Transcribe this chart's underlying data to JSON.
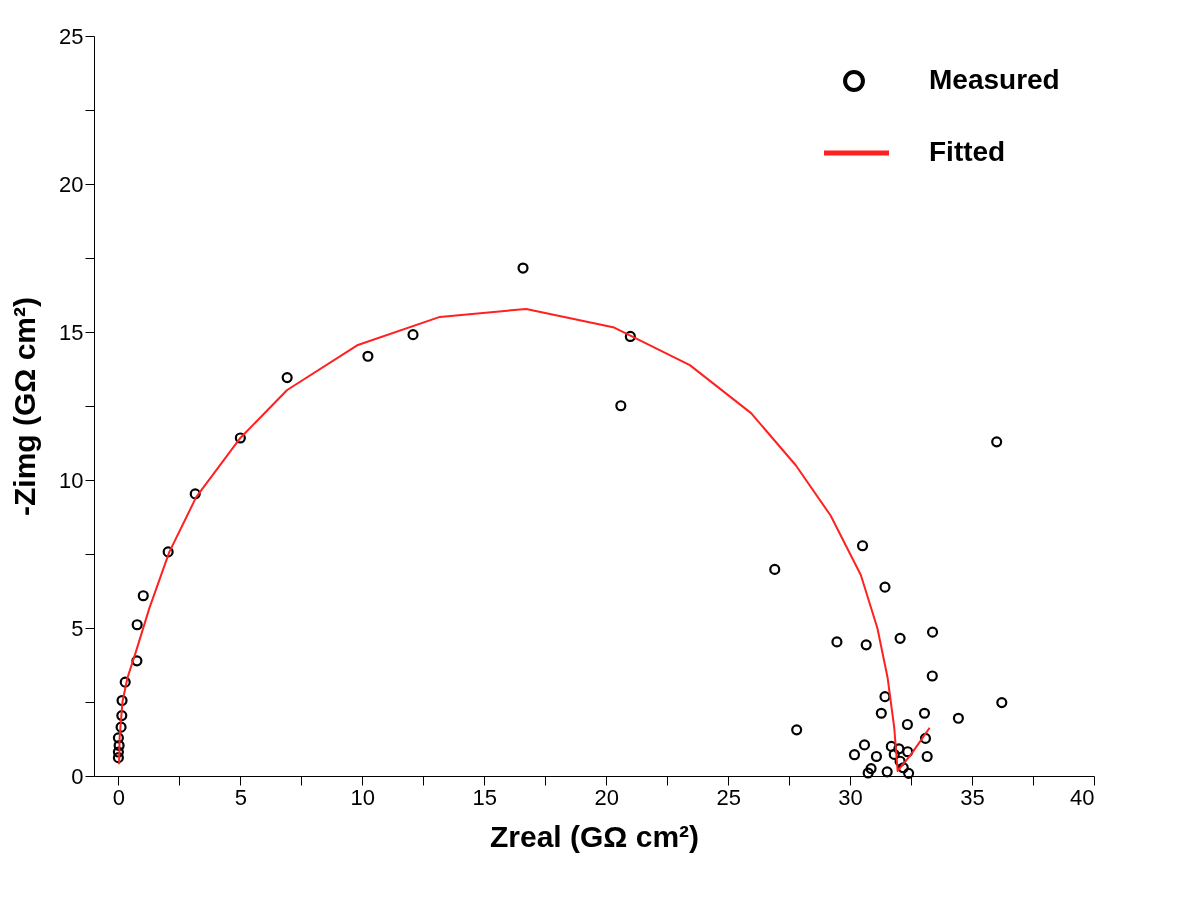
{
  "chart_data": {
    "type": "scatter",
    "xlabel": "Zreal (GΩ cm²)",
    "ylabel": "-Zimg (GΩ cm²)",
    "xlim": [
      -1,
      40
    ],
    "ylim": [
      0,
      25
    ],
    "xticks": [
      0,
      {
        "value": 2.5,
        "label": null
      },
      5,
      {
        "value": 7.5,
        "label": null
      },
      10,
      {
        "value": 12.5,
        "label": null
      },
      15,
      {
        "value": 17.5,
        "label": null
      },
      20,
      {
        "value": 22.5,
        "label": null
      },
      25,
      {
        "value": 27.5,
        "label": null
      },
      30,
      {
        "value": 32.5,
        "label": null
      },
      35,
      {
        "value": 37.5,
        "label": null
      },
      40
    ],
    "yticks": [
      0,
      {
        "value": 2.5,
        "label": null
      },
      5,
      {
        "value": 7.5,
        "label": null
      },
      10,
      {
        "value": 12.5,
        "label": null
      },
      15,
      {
        "value": 17.5,
        "label": null
      },
      20,
      {
        "value": 22.5,
        "label": null
      },
      25
    ],
    "grid": false,
    "legend": "top right",
    "series": [
      {
        "name": "Measured",
        "marker": "circle",
        "color": "#000000",
        "x": [
          0,
          0.03,
          0,
          0,
          0.11,
          0.14,
          0.15,
          0.28,
          0.76,
          0.77,
          1.02,
          2.04,
          3.15,
          5.0,
          6.92,
          10.23,
          12.08,
          16.59,
          20.99,
          20.6,
          36.01,
          26.91,
          30.51,
          31.43,
          29.46,
          30.66,
          32.05,
          33.38,
          33.37,
          36.22,
          34.44,
          27.81,
          31.43,
          31.28,
          33.05,
          32.35,
          33.09,
          30.59,
          30.18,
          31.08,
          31.69,
          32.0,
          32.36,
          31.81,
          33.16,
          30.86,
          30.74,
          31.52,
          32.05,
          32.18,
          32.4
        ],
        "values": [
          0.62,
          1.03,
          0.81,
          1.29,
          1.65,
          2.04,
          2.55,
          3.17,
          3.89,
          5.11,
          6.09,
          7.57,
          9.53,
          11.42,
          13.46,
          14.18,
          14.91,
          17.16,
          14.85,
          12.51,
          11.29,
          6.98,
          7.78,
          6.38,
          4.53,
          4.43,
          4.65,
          4.86,
          3.38,
          2.48,
          1.95,
          1.56,
          2.68,
          2.12,
          2.12,
          1.74,
          1.27,
          1.05,
          0.72,
          0.66,
          1.0,
          0.92,
          0.82,
          0.73,
          0.66,
          0.25,
          0.1,
          0.14,
          0.5,
          0.28,
          0.09
        ]
      },
      {
        "name": "Fitted",
        "type": "line",
        "color": "#ff2020",
        "line_style": "solid",
        "x": [
          0.03,
          0.05,
          0.17,
          0.37,
          0.72,
          1.27,
          2.09,
          3.19,
          5.0,
          6.92,
          9.79,
          13.18,
          16.72,
          20.33,
          23.43,
          25.94,
          27.78,
          29.2,
          30.44,
          31.12,
          31.54,
          31.81,
          31.95,
          32.5,
          33.26
        ],
        "values": [
          0.4,
          1.3,
          2.52,
          3.31,
          4.2,
          5.67,
          7.57,
          9.42,
          11.42,
          13.04,
          14.55,
          15.51,
          15.78,
          15.15,
          13.88,
          12.26,
          10.49,
          8.8,
          6.79,
          4.99,
          3.31,
          1.63,
          0.17,
          0.73,
          1.63
        ]
      }
    ]
  }
}
